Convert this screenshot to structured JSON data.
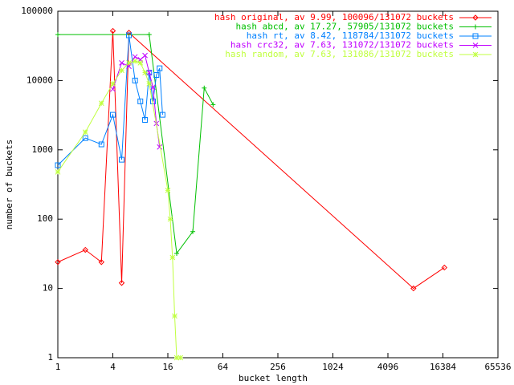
{
  "chart_data": {
    "type": "line",
    "xlabel": "bucket length",
    "ylabel": "number of buckets",
    "xlog": true,
    "ylog": true,
    "xlim": [
      1,
      65536
    ],
    "ylim": [
      1,
      100000
    ],
    "xticks": [
      1,
      4,
      16,
      64,
      256,
      1024,
      4096,
      16384,
      65536
    ],
    "yticks": [
      1,
      10,
      100,
      1000,
      10000,
      100000
    ],
    "legend": "top-right",
    "series": [
      {
        "name": "hash original, av 9.99, 100096/131072 buckets",
        "color": "#ff0000",
        "marker": "diamond",
        "x": [
          1,
          2,
          3,
          4,
          5,
          6,
          7800,
          17000
        ],
        "values": [
          24,
          36,
          24,
          52000,
          12,
          49000,
          10,
          20
        ]
      },
      {
        "name": "hash abcd, av 17.27, 57905/131072 buckets",
        "color": "#00c000",
        "marker": "plus",
        "x": [
          1,
          10,
          20,
          30,
          40,
          50
        ],
        "values": [
          46000,
          46000,
          32,
          66,
          7800,
          4500
        ]
      },
      {
        "name": "hash rt, av 8.42, 118784/131072 buckets",
        "color": "#0080ff",
        "marker": "square",
        "x": [
          1,
          2,
          3,
          4,
          5,
          6,
          7,
          8,
          9,
          10,
          11,
          12,
          13,
          14
        ],
        "values": [
          600,
          1480,
          1200,
          3200,
          720,
          45000,
          10000,
          5000,
          2700,
          13000,
          5000,
          12000,
          15000,
          3200
        ]
      },
      {
        "name": "hash crc32, av 7.63, 131072/131072 buckets",
        "color": "#c000ff",
        "marker": "cross",
        "x": [
          4,
          5,
          6,
          7,
          8,
          9,
          10,
          11,
          12,
          13
        ],
        "values": [
          7500,
          18000,
          16000,
          22000,
          20000,
          23000,
          13000,
          8000,
          2400,
          1100
        ]
      },
      {
        "name": "hash random, av 7.63, 131086/131072 buckets",
        "color": "#c0ff40",
        "marker": "star",
        "x": [
          1,
          2,
          3,
          4,
          5,
          6,
          7,
          8,
          9,
          10,
          16,
          17,
          18,
          19,
          20,
          22
        ],
        "values": [
          480,
          1800,
          4700,
          9000,
          14000,
          18000,
          19000,
          18000,
          13000,
          9000,
          260,
          100,
          28,
          4,
          1,
          1
        ]
      }
    ]
  }
}
